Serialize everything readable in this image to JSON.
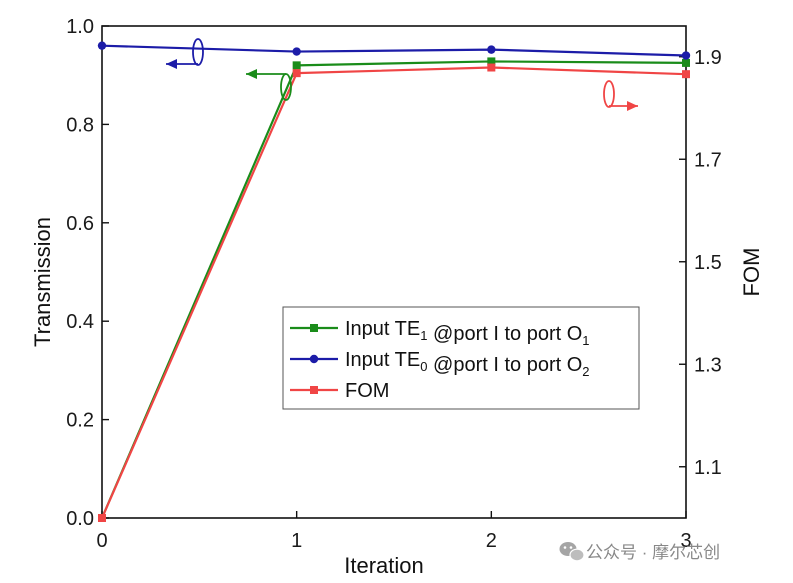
{
  "chart_data": {
    "type": "line",
    "x": [
      0,
      1,
      2,
      3
    ],
    "xticks": [
      "0",
      "1",
      "2",
      "3"
    ],
    "xlabel": "Iteration",
    "ylabel_left": "Transmission",
    "ylabel_right": "FOM",
    "ylim_left": [
      0,
      1.0
    ],
    "yticks_left": [
      "0.0",
      "0.2",
      "0.4",
      "0.6",
      "0.8",
      "1.0"
    ],
    "ylim_right": [
      1.0,
      1.96
    ],
    "yticks_right": [
      "1.1",
      "1.3",
      "1.5",
      "1.7",
      "1.9"
    ],
    "grid": false,
    "legend_position": "center-right",
    "series": [
      {
        "legend_prefix": "Input TE",
        "legend_sub1": "1",
        "legend_mid": " @port I to port O",
        "legend_sub2": "1",
        "axis": "left",
        "marker": "square",
        "color": "#1a8c1a",
        "values": [
          0.0,
          0.92,
          0.928,
          0.925
        ]
      },
      {
        "legend_prefix": "Input TE",
        "legend_sub1": "0",
        "legend_mid": " @port I to port O",
        "legend_sub2": "2",
        "axis": "left",
        "marker": "circle",
        "color": "#1c1ca8",
        "values": [
          0.96,
          0.948,
          0.952,
          0.94
        ]
      },
      {
        "legend_label": "FOM",
        "axis": "right",
        "marker": "square",
        "color": "#f04545",
        "values": [
          1.0,
          1.868,
          1.879,
          1.866
        ]
      }
    ],
    "annotations": {
      "green_arrow_points_to": "left",
      "blue_arrow_points_to": "left",
      "red_arrow_points_to": "right"
    }
  },
  "watermark": {
    "text": "公众号 · 摩尔芯创",
    "icon": "wechat-icon",
    "color": "#9a9a9a"
  }
}
